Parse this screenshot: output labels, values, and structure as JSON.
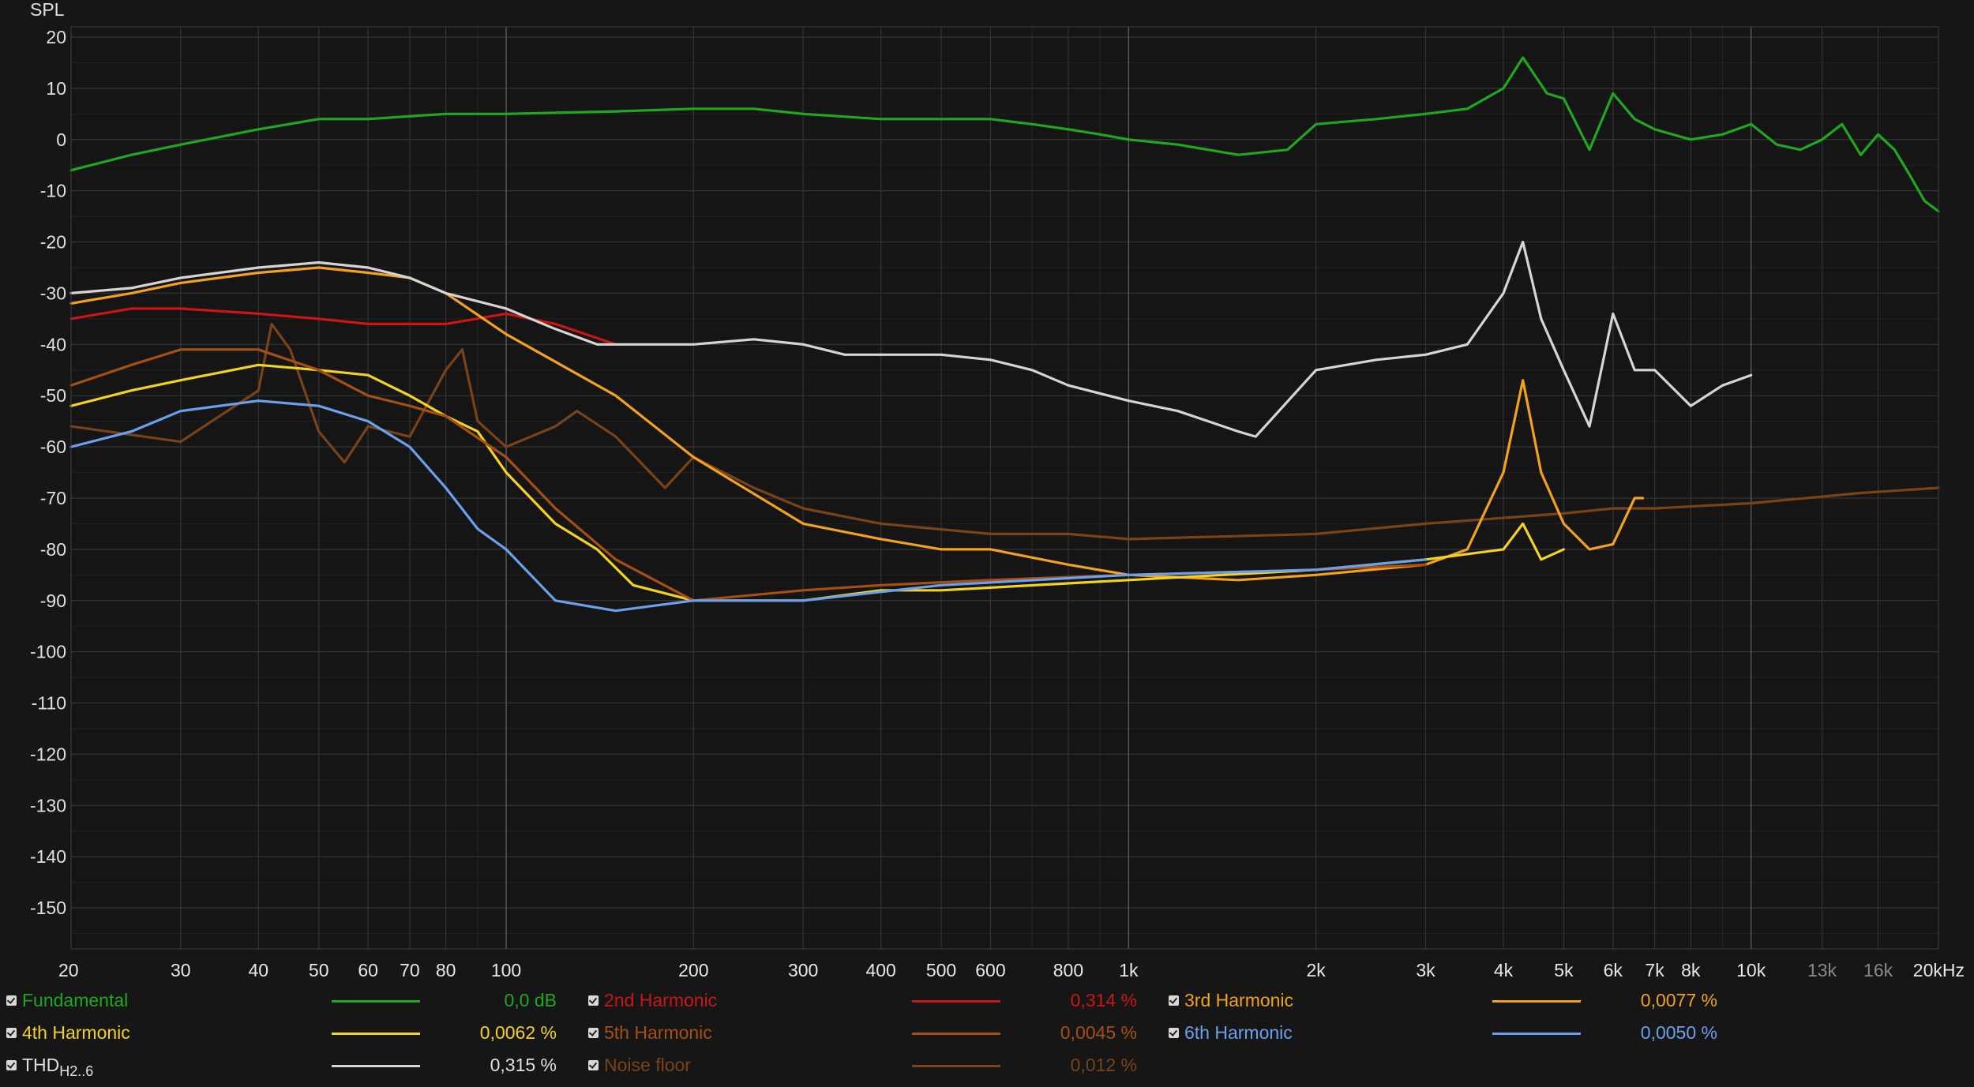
{
  "chart_data": {
    "type": "line",
    "ylabel": "SPL",
    "xscale": "log",
    "xlim": [
      20,
      20000
    ],
    "ylim": [
      -158,
      22
    ],
    "grid": true,
    "y_ticks": [
      20,
      10,
      0,
      -10,
      -20,
      -30,
      -40,
      -50,
      -60,
      -70,
      -80,
      -90,
      -100,
      -110,
      -120,
      -130,
      -140,
      -150
    ],
    "y_tick_labels": [
      "20",
      "10",
      "0",
      "-10",
      "-20",
      "-30",
      "-40",
      "-50",
      "-60",
      "-70",
      "-80",
      "-90",
      "-100",
      "-110",
      "-120",
      "-130",
      "-140",
      "-150"
    ],
    "x_ticks": [
      20,
      30,
      40,
      50,
      60,
      70,
      80,
      100,
      200,
      300,
      400,
      500,
      600,
      800,
      1000,
      2000,
      3000,
      4000,
      5000,
      6000,
      7000,
      8000,
      10000,
      13000,
      16000,
      20000
    ],
    "x_tick_labels": [
      "20",
      "30",
      "40",
      "50",
      "60",
      "70",
      "80",
      "100",
      "200",
      "300",
      "400",
      "500",
      "600",
      "800",
      "1k",
      "2k",
      "3k",
      "4k",
      "5k",
      "6k",
      "7k",
      "8k",
      "10k",
      "13k",
      "16k",
      "20kHz"
    ],
    "series": [
      {
        "name": "Fundamental",
        "color": "#1fa81f",
        "x": [
          20,
          25,
          30,
          40,
          50,
          60,
          80,
          100,
          150,
          200,
          250,
          300,
          400,
          500,
          600,
          700,
          800,
          900,
          1000,
          1200,
          1500,
          1800,
          2000,
          2500,
          3000,
          3500,
          4000,
          4300,
          4700,
          5000,
          5500,
          6000,
          6500,
          7000,
          8000,
          9000,
          10000,
          11000,
          12000,
          13000,
          14000,
          15000,
          16000,
          17000,
          18000,
          19000,
          20000
        ],
        "y": [
          -6,
          -3,
          -1,
          2,
          4,
          4,
          5,
          5,
          5.5,
          6,
          6,
          5,
          4,
          4,
          4,
          3,
          2,
          1,
          0,
          -1,
          -3,
          -2,
          3,
          4,
          5,
          6,
          10,
          16,
          9,
          8,
          -2,
          9,
          4,
          2,
          0,
          1,
          3,
          -1,
          -2,
          0,
          3,
          -3,
          1,
          -2,
          -7,
          -12,
          -14
        ]
      },
      {
        "name": "2nd Harmonic",
        "color": "#cc1515",
        "x": [
          20,
          25,
          30,
          40,
          50,
          60,
          70,
          80,
          100,
          120,
          150
        ],
        "y": [
          -35,
          -33,
          -33,
          -34,
          -35,
          -36,
          -36,
          -36,
          -34,
          -36,
          -40
        ]
      },
      {
        "name": "3rd Harmonic",
        "color": "#f2a21c",
        "x": [
          20,
          25,
          30,
          40,
          50,
          60,
          70,
          80,
          100,
          150,
          200,
          300,
          400,
          500,
          600,
          800,
          1000,
          1500,
          2000,
          3000,
          3500,
          4000,
          4300,
          4600,
          5000,
          5500,
          6000,
          6500,
          6700
        ],
        "y": [
          -32,
          -30,
          -28,
          -26,
          -25,
          -26,
          -27,
          -30,
          -38,
          -50,
          -62,
          -75,
          -78,
          -80,
          -80,
          -83,
          -85,
          -86,
          -85,
          -83,
          -80,
          -65,
          -47,
          -65,
          -75,
          -80,
          -79,
          -70,
          -70
        ]
      },
      {
        "name": "4th Harmonic",
        "color": "#f4d222",
        "x": [
          20,
          25,
          30,
          40,
          50,
          60,
          70,
          80,
          90,
          100,
          120,
          140,
          160,
          200,
          300,
          400,
          500,
          1000,
          2000,
          3000,
          4000,
          4300,
          4600,
          5000
        ],
        "y": [
          -52,
          -49,
          -47,
          -44,
          -45,
          -46,
          -50,
          -54,
          -57,
          -65,
          -75,
          -80,
          -87,
          -90,
          -90,
          -88,
          -88,
          -86,
          -84,
          -82,
          -80,
          -75,
          -82,
          -80
        ]
      },
      {
        "name": "5th Harmonic",
        "color": "#a64f14",
        "x": [
          20,
          25,
          30,
          40,
          50,
          60,
          70,
          80,
          100,
          120,
          150,
          200,
          300,
          400,
          600,
          1000,
          2000,
          3000
        ],
        "y": [
          -48,
          -44,
          -41,
          -41,
          -45,
          -50,
          -52,
          -54,
          -62,
          -72,
          -82,
          -90,
          -88,
          -87,
          -86,
          -85,
          -84,
          -83
        ]
      },
      {
        "name": "6th Harmonic",
        "color": "#6ba0ee",
        "x": [
          20,
          25,
          30,
          40,
          50,
          60,
          70,
          80,
          90,
          100,
          120,
          150,
          200,
          300,
          500,
          1000,
          2000,
          3000
        ],
        "y": [
          -60,
          -57,
          -53,
          -51,
          -52,
          -55,
          -60,
          -68,
          -76,
          -80,
          -90,
          -92,
          -90,
          -90,
          -87,
          -85,
          -84,
          -82
        ]
      },
      {
        "name": "THD",
        "color": "#d8d4d4",
        "x": [
          20,
          25,
          30,
          40,
          50,
          60,
          70,
          80,
          100,
          120,
          140,
          160,
          200,
          250,
          300,
          350,
          400,
          500,
          600,
          700,
          800,
          1000,
          1200,
          1500,
          1600,
          2000,
          2500,
          3000,
          3500,
          4000,
          4300,
          4600,
          5000,
          5500,
          6000,
          6500,
          7000,
          8000,
          9000,
          10000
        ],
        "y": [
          -30,
          -29,
          -27,
          -25,
          -24,
          -25,
          -27,
          -30,
          -33,
          -37,
          -40,
          -40,
          -40,
          -39,
          -40,
          -42,
          -42,
          -42,
          -43,
          -45,
          -48,
          -51,
          -53,
          -57,
          -58,
          -45,
          -43,
          -42,
          -40,
          -30,
          -20,
          -35,
          -45,
          -56,
          -34,
          -45,
          -45,
          -52,
          -48,
          -46
        ]
      },
      {
        "name": "Noise floor",
        "color": "#7a4317",
        "x": [
          20,
          30,
          40,
          42,
          45,
          50,
          55,
          60,
          70,
          80,
          85,
          90,
          100,
          120,
          130,
          150,
          180,
          200,
          250,
          300,
          400,
          600,
          800,
          1000,
          2000,
          3000,
          5000,
          6000,
          7000,
          10000,
          15000,
          20000
        ],
        "y": [
          -56,
          -59,
          -49,
          -36,
          -41,
          -57,
          -63,
          -56,
          -58,
          -45,
          -41,
          -55,
          -60,
          -56,
          -53,
          -58,
          -68,
          -62,
          -68,
          -72,
          -75,
          -77,
          -77,
          -78,
          -77,
          -75,
          -73,
          -72,
          -72,
          -71,
          -69,
          -68
        ]
      }
    ]
  },
  "legend": {
    "items": [
      {
        "label": "Fundamental",
        "color": "#1fa81f",
        "value": "0,0 dB",
        "sub": ""
      },
      {
        "label": "2nd Harmonic",
        "color": "#cc1515",
        "value": "0,314 %",
        "sub": ""
      },
      {
        "label": "3rd Harmonic",
        "color": "#f2a21c",
        "value": "0,0077 %",
        "sub": ""
      },
      {
        "label": "4th Harmonic",
        "color": "#f4d222",
        "value": "0,0062 %",
        "sub": ""
      },
      {
        "label": "5th Harmonic",
        "color": "#a64f14",
        "value": "0,0045 %",
        "sub": ""
      },
      {
        "label": "6th Harmonic",
        "color": "#6ba0ee",
        "value": "0,0050 %",
        "sub": ""
      },
      {
        "label": "THD",
        "color": "#d8d4d4",
        "value": "0,315 %",
        "sub": "H2..6"
      },
      {
        "label": "Noise floor",
        "color": "#7a4317",
        "value": "0,012 %",
        "sub": ""
      }
    ]
  }
}
